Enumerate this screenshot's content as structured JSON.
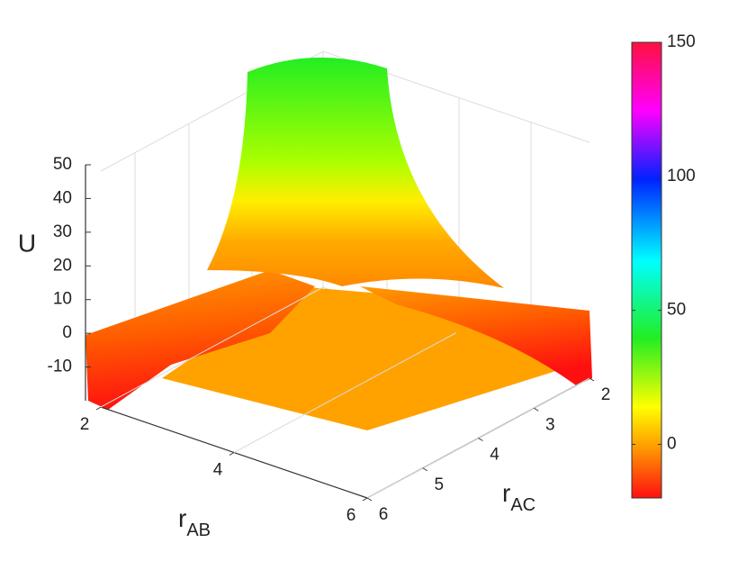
{
  "chart_data": {
    "type": "surface",
    "zlabel": "U",
    "xlabel": {
      "main": "r",
      "sub": "AB"
    },
    "ylabel": {
      "main": "r",
      "sub": "AC"
    },
    "xlim": [
      2,
      6
    ],
    "xticks": [
      2,
      4,
      6
    ],
    "ylim": [
      2,
      6
    ],
    "yticks": [
      2,
      3,
      4,
      5,
      6
    ],
    "zlim": [
      -20,
      50
    ],
    "zticks": [
      50,
      40,
      30,
      20,
      10,
      0,
      -10
    ],
    "clim": [
      -20,
      150
    ],
    "cticks": [
      150,
      100,
      50,
      0
    ],
    "grid": true
  }
}
